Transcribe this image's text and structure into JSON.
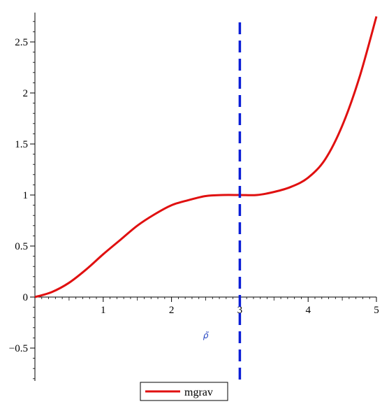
{
  "chart_data": {
    "type": "line",
    "xlabel": "ρ̃",
    "ylabel": "",
    "xlim": [
      0,
      5
    ],
    "ylim": [
      -0.8,
      2.75
    ],
    "x_ticks": [
      1,
      2,
      3,
      4,
      5
    ],
    "x_tick_labels": [
      "1",
      "2",
      "3",
      "4",
      "5"
    ],
    "y_ticks": [
      -0.5,
      0,
      0.5,
      1,
      1.5,
      2,
      2.5
    ],
    "y_tick_labels": [
      "−0.5",
      "0",
      "0.5",
      "1",
      "1.5",
      "2",
      "2.5"
    ],
    "grid": false,
    "legend_position": "bottom-left",
    "series": [
      {
        "name": "mgrav",
        "color": "#e01010",
        "x": [
          0,
          0.25,
          0.5,
          0.75,
          1,
          1.25,
          1.5,
          1.75,
          2,
          2.25,
          2.5,
          2.75,
          3,
          3.25,
          3.5,
          3.75,
          4,
          4.25,
          4.5,
          4.75,
          5
        ],
        "y": [
          0,
          0.05,
          0.14,
          0.27,
          0.42,
          0.56,
          0.7,
          0.81,
          0.9,
          0.95,
          0.99,
          1.0,
          1.0,
          1.0,
          1.03,
          1.08,
          1.17,
          1.35,
          1.68,
          2.15,
          2.75
        ]
      }
    ],
    "vertical_line": {
      "x": 3,
      "color": "#0b1ed6",
      "style": "dashed"
    }
  }
}
